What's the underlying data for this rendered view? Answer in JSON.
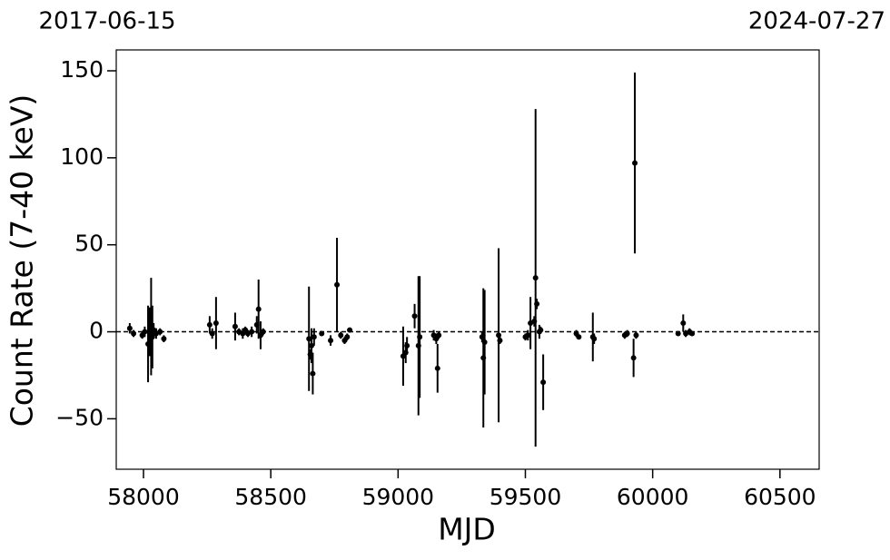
{
  "chart_data": {
    "type": "errorbar-scatter",
    "xlabel": "MJD",
    "ylabel": "Count Rate (7-40 keV)",
    "top_left_label": "2017-06-15",
    "top_right_label": "2024-07-27",
    "xlim": [
      57893,
      60654
    ],
    "ylim": [
      -79,
      162
    ],
    "xticks": [
      58000,
      58500,
      59000,
      59500,
      60000,
      60500
    ],
    "yticks": [
      {
        "value": -50,
        "label": "−50"
      },
      0,
      50,
      100,
      150
    ],
    "reference_line": 0,
    "color": "#000000",
    "x": [
      57946,
      57961,
      57995,
      58005,
      58018,
      58025,
      58030,
      58035,
      58040,
      58050,
      58065,
      58080,
      58260,
      58270,
      58285,
      58360,
      58375,
      58390,
      58400,
      58410,
      58425,
      58445,
      58452,
      58460,
      58470,
      58650,
      58655,
      58660,
      58665,
      58670,
      58700,
      58735,
      58760,
      58775,
      58790,
      58800,
      58810,
      59020,
      59030,
      59035,
      59065,
      59080,
      59085,
      59140,
      59150,
      59155,
      59160,
      59330,
      59335,
      59340,
      59395,
      59400,
      59500,
      59510,
      59520,
      59535,
      59540,
      59545,
      59555,
      59560,
      59570,
      59700,
      59710,
      59765,
      59770,
      59890,
      59900,
      59925,
      59930,
      59935,
      60100,
      60120,
      60130,
      60145,
      60155
    ],
    "values": [
      2,
      -1,
      -2,
      0,
      -7,
      0,
      3,
      -3,
      1,
      -1,
      0,
      -4,
      4,
      -1,
      5,
      3,
      0,
      -1,
      1,
      -1,
      0,
      4,
      13,
      -2,
      0,
      -4,
      -13,
      -8,
      -24,
      -3,
      -1,
      -5,
      27,
      -2,
      -5,
      -3,
      1,
      -14,
      -12,
      -8,
      9,
      -8,
      -3,
      -2,
      -4,
      -21,
      -2,
      -3,
      -15,
      -6,
      -2,
      -5,
      -3,
      -2,
      5,
      6,
      31,
      16,
      0,
      1,
      -29,
      -1,
      -3,
      -3,
      -4,
      -2,
      -1,
      -15,
      97,
      -2,
      -1,
      5,
      -1,
      0,
      -1
    ],
    "errors": [
      3,
      2,
      2,
      3,
      22,
      14,
      28,
      18,
      4,
      3,
      2,
      2,
      5,
      3,
      15,
      8,
      2,
      3,
      2,
      2,
      3,
      5,
      17,
      8,
      2,
      30,
      3,
      10,
      12,
      5,
      1,
      3,
      27,
      2,
      2,
      2,
      1,
      17,
      6,
      5,
      7,
      40,
      35,
      3,
      3,
      14,
      2,
      3,
      40,
      30,
      50,
      2,
      2,
      3,
      15,
      3,
      97,
      3,
      4,
      2,
      16,
      2,
      1,
      14,
      3,
      2,
      2,
      11,
      52,
      2,
      1,
      5,
      2,
      2,
      1
    ]
  }
}
